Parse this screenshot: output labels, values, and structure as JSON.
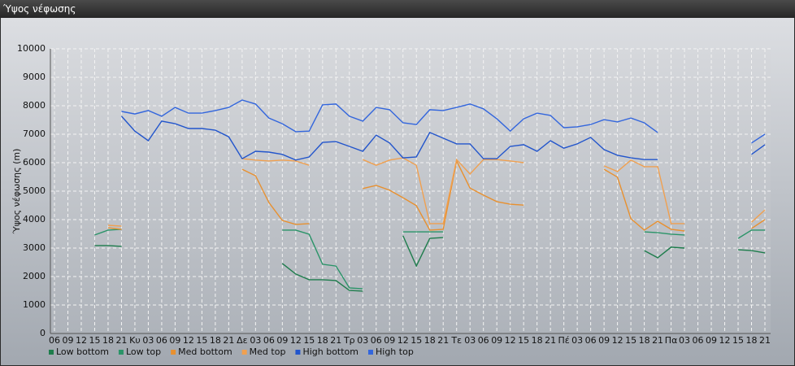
{
  "window_title": "Ύψος νέφωσης",
  "chart_data": {
    "type": "line",
    "ylabel": "Ύψος νέφωσης (m)",
    "categories": [
      "06",
      "09",
      "12",
      "15",
      "18",
      "21",
      "Κυ",
      "03",
      "06",
      "09",
      "12",
      "15",
      "18",
      "21",
      "Δε",
      "03",
      "06",
      "09",
      "12",
      "15",
      "18",
      "21",
      "Τρ",
      "03",
      "06",
      "09",
      "12",
      "15",
      "18",
      "21",
      "Τε",
      "03",
      "06",
      "09",
      "12",
      "15",
      "18",
      "21",
      "Πέ",
      "03",
      "06",
      "09",
      "12",
      "15",
      "18",
      "21",
      "Πα",
      "03",
      "06",
      "09",
      "12",
      "15",
      "18",
      "21"
    ],
    "ylim": [
      0,
      10000
    ],
    "yticks": [
      0,
      1000,
      2000,
      3000,
      4000,
      5000,
      6000,
      7000,
      8000,
      9000,
      10000
    ],
    "grid": true,
    "legend": "bottom-left",
    "series": [
      {
        "name": "Low bottom",
        "color": "#1e7d4c",
        "values": [
          null,
          null,
          null,
          3090,
          3090,
          3060,
          null,
          null,
          null,
          null,
          null,
          null,
          null,
          null,
          null,
          null,
          null,
          2460,
          2090,
          1890,
          1890,
          1860,
          1510,
          1490,
          null,
          null,
          3430,
          2370,
          3340,
          3370,
          null,
          null,
          null,
          null,
          null,
          null,
          null,
          null,
          null,
          null,
          null,
          null,
          null,
          null,
          2910,
          2660,
          3030,
          3000,
          null,
          null,
          null,
          2940,
          2910,
          2830
        ]
      },
      {
        "name": "Low top",
        "color": "#2a9468",
        "values": [
          null,
          null,
          null,
          3460,
          3630,
          3660,
          null,
          null,
          null,
          null,
          null,
          null,
          null,
          null,
          null,
          null,
          null,
          3630,
          3630,
          3490,
          2430,
          2370,
          1600,
          1570,
          null,
          null,
          3570,
          3570,
          3570,
          3570,
          null,
          null,
          null,
          null,
          null,
          null,
          null,
          null,
          null,
          null,
          null,
          null,
          null,
          null,
          3570,
          3540,
          3490,
          3460,
          null,
          null,
          null,
          3340,
          3630,
          3630
        ]
      },
      {
        "name": "Med bottom",
        "color": "#e8902f",
        "values": [
          null,
          null,
          null,
          null,
          3710,
          3660,
          null,
          null,
          null,
          null,
          null,
          null,
          null,
          null,
          5770,
          5540,
          4600,
          3970,
          3830,
          3860,
          null,
          null,
          null,
          5090,
          5200,
          5030,
          4770,
          4490,
          3630,
          3660,
          6060,
          5110,
          4860,
          4630,
          4540,
          4510,
          null,
          null,
          null,
          null,
          null,
          5770,
          5490,
          4030,
          3630,
          3940,
          3660,
          3600,
          null,
          null,
          null,
          null,
          3690,
          4000
        ]
      },
      {
        "name": "Med top",
        "color": "#f0a050",
        "values": [
          null,
          null,
          null,
          null,
          3800,
          3770,
          null,
          null,
          null,
          null,
          null,
          null,
          null,
          null,
          6140,
          6090,
          6060,
          6090,
          6060,
          5910,
          null,
          null,
          null,
          6110,
          5910,
          6090,
          6170,
          5910,
          3860,
          3860,
          6110,
          5600,
          6110,
          6110,
          6060,
          6000,
          null,
          null,
          null,
          null,
          null,
          5890,
          5690,
          6090,
          5860,
          5860,
          3860,
          3860,
          null,
          null,
          null,
          null,
          3910,
          4340
        ]
      },
      {
        "name": "High bottom",
        "color": "#2255cc",
        "values": [
          null,
          null,
          null,
          null,
          null,
          7630,
          7110,
          6770,
          7460,
          7370,
          7200,
          7200,
          7140,
          6910,
          6140,
          6400,
          6370,
          6290,
          6090,
          6200,
          6710,
          6740,
          6570,
          6400,
          6970,
          6690,
          6170,
          6200,
          7060,
          6860,
          6660,
          6660,
          6140,
          6140,
          6570,
          6630,
          6400,
          6770,
          6510,
          6660,
          6890,
          6460,
          6260,
          6170,
          6110,
          6110,
          null,
          null,
          null,
          null,
          null,
          null,
          6290,
          6630
        ]
      },
      {
        "name": "High top",
        "color": "#3366dd",
        "values": [
          null,
          null,
          null,
          null,
          null,
          7800,
          7710,
          7830,
          7630,
          7940,
          7740,
          7740,
          7830,
          7940,
          8200,
          8060,
          7570,
          7370,
          7090,
          7110,
          8030,
          8060,
          7630,
          7460,
          7940,
          7860,
          7400,
          7340,
          7860,
          7830,
          7940,
          8060,
          7890,
          7540,
          7110,
          7540,
          7740,
          7660,
          7230,
          7260,
          7340,
          7510,
          7430,
          7570,
          7400,
          7060,
          null,
          null,
          null,
          null,
          null,
          null,
          6690,
          7000
        ]
      }
    ]
  }
}
